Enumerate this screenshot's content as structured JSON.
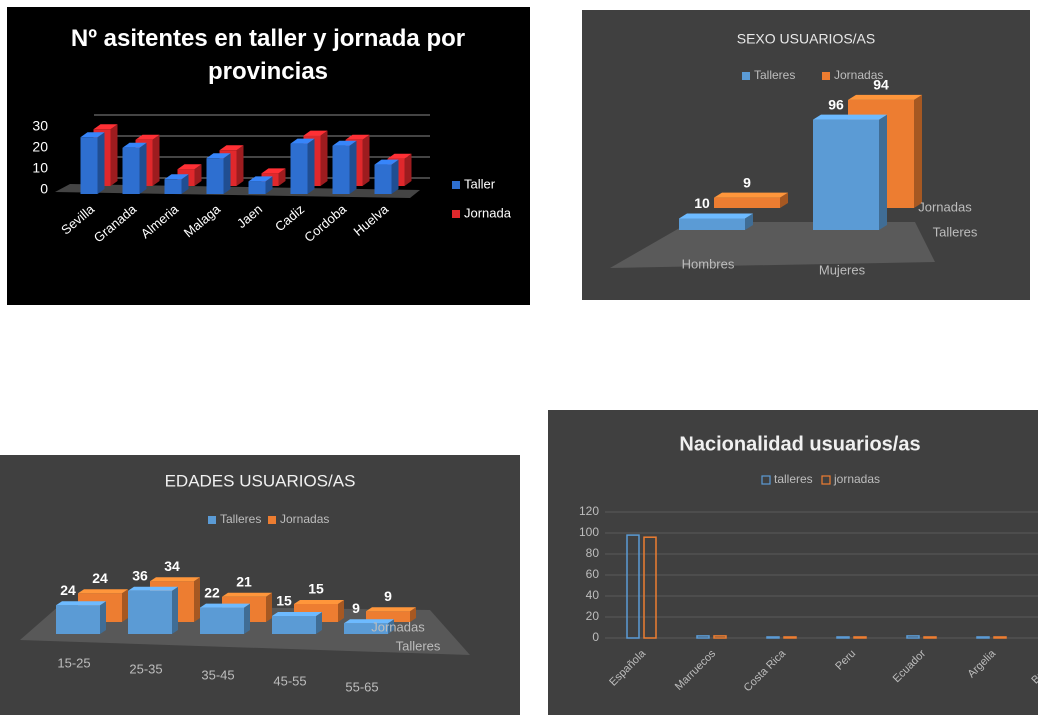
{
  "chart_data": [
    {
      "type": "bar",
      "three_d": true,
      "title": "Nº asitentes en taller y jornada por provincias",
      "categories": [
        "Sevilla",
        "Granada",
        "Almeria",
        "Malaga",
        "Jaen",
        "Cadiz",
        "Cordoba",
        "Huelva"
      ],
      "series": [
        {
          "name": "Taller",
          "color": "#2e6fd0",
          "values": [
            27,
            22,
            7,
            17,
            6,
            24,
            23,
            14
          ]
        },
        {
          "name": "Jornada",
          "color": "#e0282c",
          "values": [
            27,
            22,
            8,
            17,
            6,
            24,
            22,
            13
          ]
        }
      ],
      "ylim": [
        0,
        30
      ],
      "yticks": [
        0,
        10,
        20,
        30
      ],
      "grid": true,
      "legend": "right"
    },
    {
      "type": "bar",
      "three_d": true,
      "title": "SEXO USUARIOS/AS",
      "categories": [
        "Hombres",
        "Mujeres"
      ],
      "series": [
        {
          "name": "Talleres",
          "color": "#5b9bd5",
          "values": [
            10,
            96
          ]
        },
        {
          "name": "Jornadas",
          "color": "#ed7d31",
          "values": [
            9,
            94
          ]
        }
      ],
      "data_labels": true,
      "legend": "top"
    },
    {
      "type": "bar",
      "three_d": true,
      "title": "EDADES USUARIOS/AS",
      "categories": [
        "15-25",
        "25-35",
        "35-45",
        "45-55",
        "55-65"
      ],
      "series": [
        {
          "name": "Talleres",
          "color": "#5b9bd5",
          "values": [
            24,
            36,
            22,
            15,
            9
          ]
        },
        {
          "name": "Jornadas",
          "color": "#ed7d31",
          "values": [
            24,
            34,
            21,
            15,
            9
          ]
        }
      ],
      "data_labels": true,
      "legend": "top"
    },
    {
      "type": "bar",
      "bar_style": "outline",
      "title": "Nacionalidad usuarios/as",
      "categories": [
        "Española",
        "Marruecos",
        "Costa Rica",
        "Peru",
        "Ecuador",
        "Argelia",
        "Britanica"
      ],
      "series": [
        {
          "name": "talleres",
          "color": "#5b9bd5",
          "values": [
            98,
            2,
            1,
            1,
            2,
            1,
            1
          ]
        },
        {
          "name": "jornadas",
          "color": "#ed7d31",
          "values": [
            96,
            2,
            1,
            1,
            1,
            1,
            1
          ]
        }
      ],
      "ylim": [
        0,
        120
      ],
      "yticks": [
        0,
        20,
        40,
        60,
        80,
        100,
        120
      ],
      "grid": true,
      "legend": "top"
    }
  ]
}
